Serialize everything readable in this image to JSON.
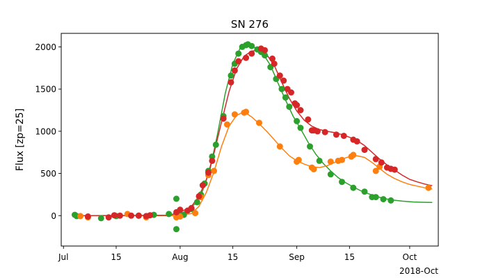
{
  "chart_data": {
    "type": "scatter",
    "title": "SN 276",
    "xlabel": "",
    "ylabel": "Flux [zp=25]",
    "offset_label": "2018-Oct",
    "x_unit": "days since 2018-07-01",
    "xlim": [
      -0.6,
      99.6
    ],
    "ylim": [
      -360,
      2160
    ],
    "x_ticks": [
      {
        "value": 0,
        "label": "Jul"
      },
      {
        "value": 14,
        "label": "15"
      },
      {
        "value": 31,
        "label": "Aug"
      },
      {
        "value": 45,
        "label": "15"
      },
      {
        "value": 62,
        "label": "Sep"
      },
      {
        "value": 76,
        "label": "15"
      },
      {
        "value": 92,
        "label": "Oct"
      }
    ],
    "y_ticks": [
      0,
      500,
      1000,
      1500,
      2000
    ],
    "grid": false,
    "legend": "none",
    "series": [
      {
        "color": "#2ca02c",
        "points": [
          [
            3,
            10
          ],
          [
            3.5,
            -5
          ],
          [
            10,
            -30
          ],
          [
            14,
            -5
          ],
          [
            20,
            0
          ],
          [
            24,
            10
          ],
          [
            28,
            20
          ],
          [
            30,
            200
          ],
          [
            30,
            -160
          ],
          [
            32,
            10
          ],
          [
            34,
            80
          ],
          [
            35.5,
            160
          ],
          [
            36.5,
            250
          ],
          [
            37.5,
            380
          ],
          [
            38.5,
            530
          ],
          [
            39.5,
            700
          ],
          [
            40.5,
            840
          ],
          [
            42.5,
            1180
          ],
          [
            44.5,
            1660
          ],
          [
            45.5,
            1800
          ],
          [
            46.5,
            1920
          ],
          [
            47.5,
            2000
          ],
          [
            48.5,
            2020
          ],
          [
            49,
            2030
          ],
          [
            50,
            2010
          ],
          [
            51.5,
            1970
          ],
          [
            52.5,
            1940
          ],
          [
            53.5,
            1900
          ],
          [
            55,
            1760
          ],
          [
            56.5,
            1620
          ],
          [
            58,
            1500
          ],
          [
            59,
            1400
          ],
          [
            60,
            1290
          ],
          [
            62,
            1120
          ],
          [
            63,
            1040
          ],
          [
            65.5,
            820
          ],
          [
            68,
            650
          ],
          [
            71,
            490
          ],
          [
            74,
            400
          ],
          [
            77,
            330
          ],
          [
            80,
            285
          ],
          [
            82,
            220
          ],
          [
            83,
            220
          ],
          [
            85,
            195
          ],
          [
            87,
            180
          ]
        ],
        "curve": [
          [
            3,
            0
          ],
          [
            20,
            0
          ],
          [
            28,
            5
          ],
          [
            32,
            40
          ],
          [
            35,
            140
          ],
          [
            37,
            300
          ],
          [
            39,
            560
          ],
          [
            41,
            980
          ],
          [
            43,
            1450
          ],
          [
            45,
            1800
          ],
          [
            47,
            1990
          ],
          [
            49,
            2020
          ],
          [
            51,
            1990
          ],
          [
            53,
            1920
          ],
          [
            55,
            1780
          ],
          [
            57,
            1570
          ],
          [
            59,
            1370
          ],
          [
            61,
            1180
          ],
          [
            63,
            1030
          ],
          [
            65,
            870
          ],
          [
            67,
            730
          ],
          [
            69,
            620
          ],
          [
            71,
            530
          ],
          [
            73,
            450
          ],
          [
            75,
            390
          ],
          [
            77,
            340
          ],
          [
            79,
            295
          ],
          [
            81,
            260
          ],
          [
            83,
            230
          ],
          [
            85,
            205
          ],
          [
            87,
            188
          ],
          [
            90,
            172
          ],
          [
            93,
            162
          ],
          [
            96,
            158
          ],
          [
            98,
            157
          ]
        ]
      },
      {
        "color": "#ff7f0e",
        "points": [
          [
            4.5,
            -5
          ],
          [
            6.5,
            -20
          ],
          [
            17,
            20
          ],
          [
            22,
            -20
          ],
          [
            30,
            -20
          ],
          [
            31,
            -10
          ],
          [
            35,
            30
          ],
          [
            36.5,
            220
          ],
          [
            38.5,
            480
          ],
          [
            40,
            530
          ],
          [
            43.5,
            1080
          ],
          [
            45.5,
            1200
          ],
          [
            48,
            1220
          ],
          [
            48.5,
            1230
          ],
          [
            52,
            1100
          ],
          [
            57.5,
            820
          ],
          [
            62,
            640
          ],
          [
            62.5,
            660
          ],
          [
            66,
            570
          ],
          [
            66.5,
            550
          ],
          [
            71,
            640
          ],
          [
            73,
            650
          ],
          [
            74,
            660
          ],
          [
            76.5,
            700
          ],
          [
            77,
            720
          ],
          [
            83,
            530
          ],
          [
            84,
            580
          ],
          [
            97,
            330
          ]
        ],
        "curve": [
          [
            3,
            0
          ],
          [
            30,
            0
          ],
          [
            34,
            25
          ],
          [
            36,
            110
          ],
          [
            38,
            280
          ],
          [
            40,
            520
          ],
          [
            42,
            820
          ],
          [
            44,
            1060
          ],
          [
            46,
            1190
          ],
          [
            48,
            1230
          ],
          [
            50,
            1170
          ],
          [
            52,
            1090
          ],
          [
            54,
            1000
          ],
          [
            56,
            900
          ],
          [
            58,
            800
          ],
          [
            60,
            710
          ],
          [
            62,
            650
          ],
          [
            64,
            610
          ],
          [
            66,
            580
          ],
          [
            68,
            570
          ],
          [
            70,
            590
          ],
          [
            72,
            630
          ],
          [
            74,
            670
          ],
          [
            76,
            700
          ],
          [
            78,
            710
          ],
          [
            80,
            690
          ],
          [
            82,
            630
          ],
          [
            84,
            560
          ],
          [
            86,
            490
          ],
          [
            88,
            440
          ],
          [
            90,
            400
          ],
          [
            92,
            370
          ],
          [
            94,
            350
          ],
          [
            96,
            330
          ],
          [
            98,
            315
          ]
        ]
      },
      {
        "color": "#d62728",
        "points": [
          [
            6.5,
            -10
          ],
          [
            12,
            -20
          ],
          [
            13.5,
            5
          ],
          [
            15,
            0
          ],
          [
            18,
            0
          ],
          [
            20,
            0
          ],
          [
            22,
            -5
          ],
          [
            23,
            5
          ],
          [
            30,
            40
          ],
          [
            31,
            70
          ],
          [
            33,
            60
          ],
          [
            34,
            90
          ],
          [
            36,
            230
          ],
          [
            37,
            360
          ],
          [
            38.5,
            510
          ],
          [
            39.5,
            650
          ],
          [
            42.5,
            1150
          ],
          [
            44.5,
            1580
          ],
          [
            45.5,
            1720
          ],
          [
            46.5,
            1830
          ],
          [
            48.5,
            1870
          ],
          [
            50,
            1920
          ],
          [
            52.5,
            1980
          ],
          [
            53.5,
            1960
          ],
          [
            55.5,
            1860
          ],
          [
            56,
            1800
          ],
          [
            57.5,
            1660
          ],
          [
            58.5,
            1600
          ],
          [
            59.5,
            1500
          ],
          [
            60.5,
            1460
          ],
          [
            61.5,
            1330
          ],
          [
            62,
            1310
          ],
          [
            63,
            1250
          ],
          [
            65,
            1140
          ],
          [
            66,
            1010
          ],
          [
            66.5,
            1010
          ],
          [
            67.5,
            1000
          ],
          [
            69.5,
            990
          ],
          [
            72.5,
            960
          ],
          [
            74.5,
            945
          ],
          [
            77,
            900
          ],
          [
            78,
            880
          ],
          [
            80,
            780
          ],
          [
            83,
            670
          ],
          [
            84.5,
            630
          ],
          [
            86,
            570
          ],
          [
            87,
            555
          ],
          [
            88,
            545
          ]
        ],
        "curve": [
          [
            3,
            0
          ],
          [
            28,
            5
          ],
          [
            31,
            40
          ],
          [
            34,
            110
          ],
          [
            36,
            230
          ],
          [
            38,
            430
          ],
          [
            40,
            740
          ],
          [
            42,
            1110
          ],
          [
            44,
            1470
          ],
          [
            46,
            1740
          ],
          [
            48,
            1890
          ],
          [
            50,
            1950
          ],
          [
            52,
            1960
          ],
          [
            54,
            1910
          ],
          [
            56,
            1780
          ],
          [
            58,
            1580
          ],
          [
            60,
            1390
          ],
          [
            62,
            1240
          ],
          [
            64,
            1130
          ],
          [
            66,
            1060
          ],
          [
            68,
            1020
          ],
          [
            70,
            1000
          ],
          [
            72,
            985
          ],
          [
            74,
            960
          ],
          [
            76,
            930
          ],
          [
            78,
            890
          ],
          [
            80,
            830
          ],
          [
            82,
            750
          ],
          [
            84,
            670
          ],
          [
            86,
            600
          ],
          [
            88,
            540
          ],
          [
            90,
            480
          ],
          [
            92,
            430
          ],
          [
            94,
            400
          ],
          [
            96,
            375
          ],
          [
            98,
            355
          ]
        ]
      }
    ]
  }
}
